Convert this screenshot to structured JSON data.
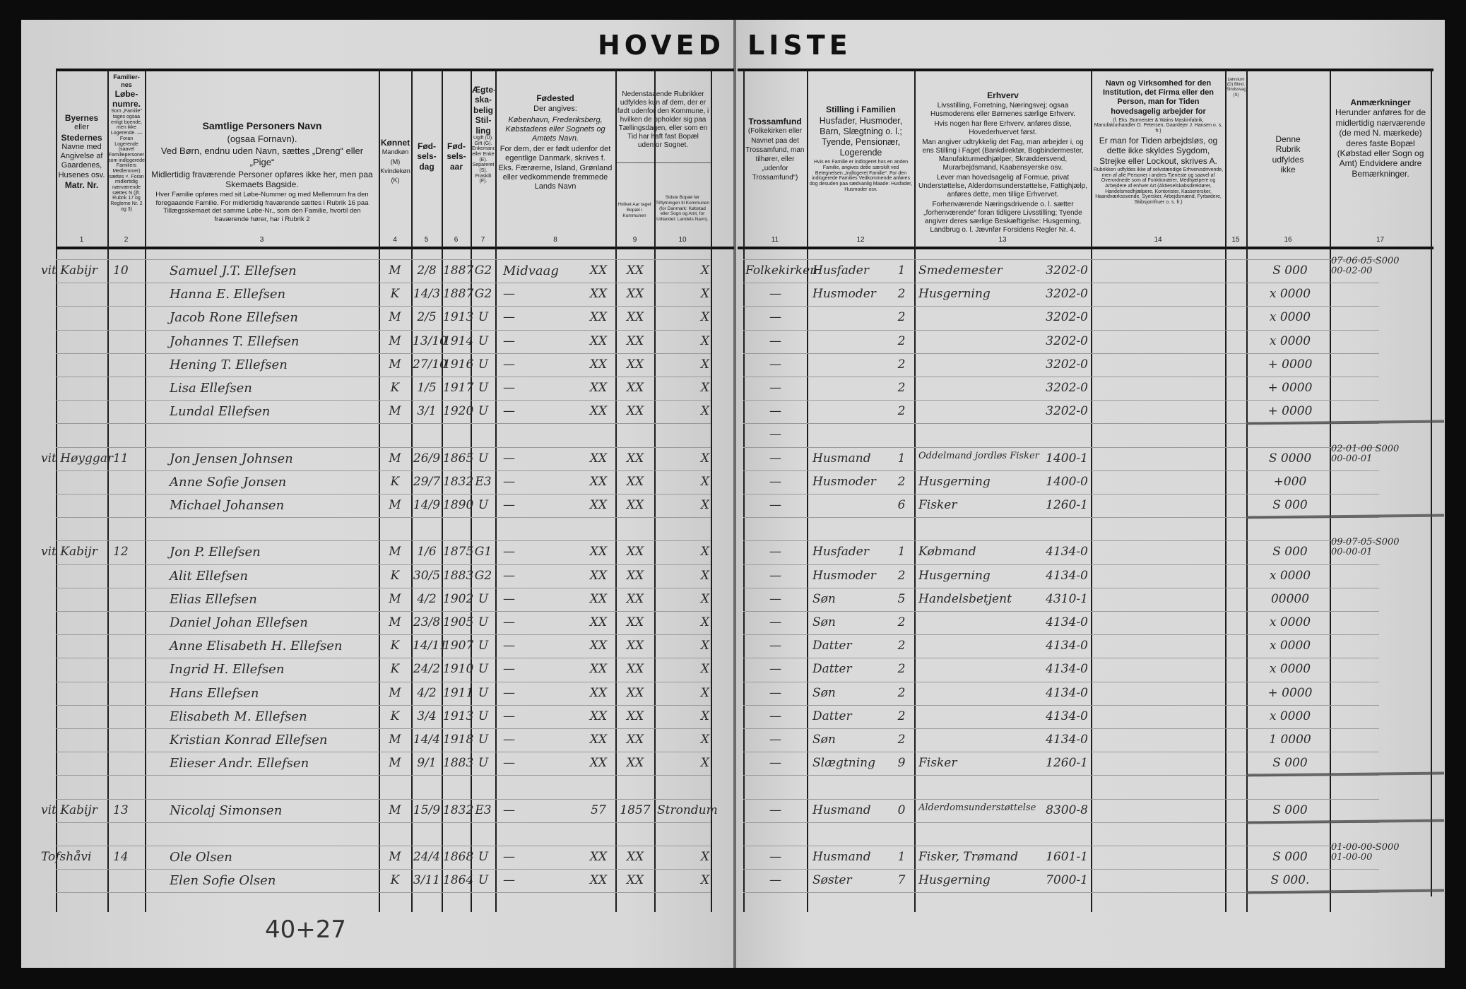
{
  "title": {
    "left": "HOVED",
    "right": "LISTE"
  },
  "headers": {
    "c1": {
      "b1": "Byernes",
      "t1": "eller",
      "b2": "Stedernes",
      "t2": "Navne med Angivelse af Gaardenes, Husenes osv.",
      "b3": "Matr. Nr."
    },
    "c2": {
      "b1": "Familier-nes",
      "b2": "Løbe-numre.",
      "t": "Som „Familie“ tages ogsaa enligt boende, men ikke Logerende. — Foran Logerende (saavel Familiepersoner som indlogerede Familiers Medlemmer) sættes ×. Foran midlertidig nærværende sættes N (jfr. Rubrik 17 og Reglerne Nr. 2 og 3)"
    },
    "c3": {
      "title": "Samtlige Personers Navn",
      "sub": "(ogsaa Fornavn).",
      "p1": "Ved Børn, endnu uden Navn, sættes „Dreng“ eller „Pige“",
      "p2": "Midlertidig fraværende Personer opføres ikke her, men paa Skemaets Bagside.",
      "p3": "Hver Familie opføres med sit Løbe-Nummer og med Mellemrum fra den foregaaende Familie. For midlertidig fraværende sættes i Rubrik 16 paa Tillægsskemaet det samme Løbe-Nr., som den Familie, hvortil den fraværende hører, har i Rubrik 2"
    },
    "c4": {
      "title": "Kønnet",
      "t": "Mandkøn (M) Kvindekøn (K)"
    },
    "c5": "Fød-sels-dag",
    "c6": "Fød-sels-aar",
    "c7": {
      "title": "Ægte-ska-belig Stil-ling",
      "t": "Ugift (U). Gift (G). Enkemand eller Enke (E). Separeret (S). Fraskilt (F)."
    },
    "c8": {
      "title": "Fødested",
      "t1": "Der angives:",
      "t2": "København, Frederiksberg, Købstadens eller Sognets og Amtets Navn.",
      "t3": "For dem, der er født udenfor det egentlige Danmark, skrives f. Eks. Færøerne, Island, Grønland eller vedkommende fremmede Lands Navn"
    },
    "c9_10": "Nedenstaaende Rubrikker udfyldes kun af dem, der er født udenfor den Kommune, i hvilken de opholder sig paa Tællingsdagen, eller som en Tid har haft fast Bopæl udenfor Sognet.",
    "c9": "Hvilket Aar taget Bopæl i Kommunen",
    "c10": "Sidste Bopæl før Tilflytningen til Kommunen (for Danmark: Købstad eller Sogn og Amt, for Udlandet: Landets Navn).",
    "c11": {
      "title": "Trossamfund",
      "t": "(Folkekirken eller Navnet paa det Trossamfund, man tilhører, eller „udenfor Trossamfund“)"
    },
    "c12": {
      "title": "Stilling i Familien",
      "t1": "Husfader, Husmoder, Barn, Slægtning o. l.; Tyende, Pensionær, Logerende",
      "t2": "Hvis en Familie er indlogeret hos en anden Familie, angives dette særskilt ved Betegnelsen „Indlogeret Familie“. For den indlogerede Families Vedkommende anføres dog desuden paa sædvanlig Maade: Husfader, Husmoder osv."
    },
    "c13": {
      "title": "Erhverv",
      "p1": "Livsstilling, Forretning, Næringsvej; ogsaa Husmoderens eller Børnenes særlige Erhverv.",
      "p2": "Hvis nogen har flere Erhverv, anføres disse, Hovederhvervet først.",
      "p3": "Man angiver udtrykkelig det Fag, man arbejder i, og ens Stilling i Faget (Bankdirektør, Bogbindermester, Manufakturmedhjælper, Skræddersvend, Murarbejdsmand, Kaabensyerske osv.",
      "p4": "Lever man hovedsagelig af Formue, privat Understøttelse, Alderdomsunderstøttelse, Fattighjælp, anføres dette, men tillige Erhvervet.",
      "p5": "Forhenværende Næringsdrivende o. l. sætter „forhenværende“ foran tidligere Livsstilling; Tyende angiver deres særlige Beskæftigelse: Husgerning, Landbrug o. l. Jævnfør Forsidens Regler Nr. 4."
    },
    "c14": {
      "p1": "Navn og Virksomhed for den Institution, det Firma eller den Person, man for Tiden hovedsagelig arbejder for",
      "p2": "(f. Eks. Burmeister & Wains Maskinfabrik, Manufakturhandler O. Petersen, Gaardejer J. Hansen o. s. fr.)",
      "p3": "Er man for Tiden arbejdsløs, og dette ikke skyldes Sygdom, Strejke eller Lockout, skrives A.",
      "p4": "Rubrikken udfyldes ikke af selvstændige Erhvervsdrivende, men af alle Personer i andres Tjeneste og saavel af Overordnede som af Funktionærer, Medhjælpere og Arbejdere af enhver Art (Aktieselskabsdirektører, Handelsmedhjælpere, Kontorister, Kasserersker, Haandværkssvende, Syersker, Arbejdsmænd, Fyrbødere, Skibsjomfruer o. s. fr.)"
    },
    "c15": "Døvstum (D) Blind. Sindssvag (S)",
    "c16": "Denne Rubrik udfyldes ikke",
    "c17": {
      "title": "Anmærkninger",
      "t": "Herunder anføres for de midlertidig nærværende (de med N. mærkede) deres faste Bopæl (Købstad eller Sogn og Amt) Endvidere andre Bemærkninger."
    }
  },
  "column_numbers": [
    "1",
    "2",
    "3",
    "4",
    "5",
    "6",
    "7",
    "8",
    "9",
    "10",
    "11",
    "12",
    "13",
    "14",
    "15",
    "16",
    "17"
  ],
  "rows": [
    {
      "place": "vit Kabijr",
      "fam": "10",
      "name": "Samuel J.T. Ellefsen",
      "sex": "M",
      "day": "2/8",
      "year": "1887",
      "marital": "G2",
      "birthplace": "Midvaag",
      "m8": "XX",
      "c9": "XX",
      "c10": "X",
      "religion": "Folkekirken",
      "position": "Husfader",
      "pos_code": "1",
      "occupation": "Smedemester",
      "occ_code": "3202-0",
      "c16": "S 000",
      "c17": "07-06-05-S000\n00-02-00"
    },
    {
      "name": "Hanna E. Ellefsen",
      "sex": "K",
      "day": "14/3",
      "year": "1887",
      "marital": "G2",
      "birthplace": "—",
      "m8": "XX",
      "c9": "XX",
      "c10": "X",
      "religion": "—",
      "position": "Husmoder",
      "pos_code": "2",
      "occupation": "Husgerning",
      "occ_code": "3202-0",
      "c16": "x 0000"
    },
    {
      "name": "Jacob Rone Ellefsen",
      "sex": "M",
      "day": "2/5",
      "year": "1913",
      "marital": "U",
      "birthplace": "—",
      "m8": "XX",
      "c9": "XX",
      "c10": "X",
      "religion": "—",
      "pos_code": "2",
      "occ_code": "3202-0",
      "c16": "x 0000"
    },
    {
      "name": "Johannes T. Ellefsen",
      "sex": "M",
      "day": "13/10",
      "year": "1914",
      "marital": "U",
      "birthplace": "—",
      "m8": "XX",
      "c9": "XX",
      "c10": "X",
      "religion": "—",
      "pos_code": "2",
      "occ_code": "3202-0",
      "c16": "x 0000"
    },
    {
      "name": "Hening T. Ellefsen",
      "sex": "M",
      "day": "27/10",
      "year": "1916",
      "marital": "U",
      "birthplace": "—",
      "m8": "XX",
      "c9": "XX",
      "c10": "X",
      "religion": "—",
      "pos_code": "2",
      "occ_code": "3202-0",
      "c16": "+ 0000"
    },
    {
      "name": "Lisa Ellefsen",
      "sex": "K",
      "day": "1/5",
      "year": "1917",
      "marital": "U",
      "birthplace": "—",
      "m8": "XX",
      "c9": "XX",
      "c10": "X",
      "religion": "—",
      "pos_code": "2",
      "occ_code": "3202-0",
      "c16": "+ 0000"
    },
    {
      "name": "Lundal Ellefsen",
      "sex": "M",
      "day": "3/1",
      "year": "1920",
      "marital": "U",
      "birthplace": "—",
      "m8": "XX",
      "c9": "XX",
      "c10": "X",
      "religion": "—",
      "pos_code": "2",
      "occ_code": "3202-0",
      "c16": "+ 0000"
    },
    {
      "religion": "—"
    },
    {
      "place": "vit Høyggar",
      "fam": "11",
      "name": "Jon Jensen Johnsen",
      "sex": "M",
      "day": "26/9",
      "year": "1865",
      "marital": "U",
      "birthplace": "—",
      "m8": "XX",
      "c9": "XX",
      "c10": "X",
      "religion": "—",
      "position": "Husmand",
      "pos_code": "1",
      "occupation": "Oddelmand jordløs Fisker",
      "occ_code": "1400-1",
      "c16": "S 0000",
      "c17": "02-01-00 S000\n00-00-01"
    },
    {
      "name": "Anne Sofie Jonsen",
      "sex": "K",
      "day": "29/7",
      "year": "1832",
      "marital": "E3",
      "birthplace": "—",
      "m8": "XX",
      "c9": "XX",
      "c10": "X",
      "religion": "—",
      "position": "Husmoder",
      "pos_code": "2",
      "occupation": "Husgerning",
      "occ_code": "1400-0",
      "c16": "+000"
    },
    {
      "name": "Michael Johansen",
      "sex": "M",
      "day": "14/9",
      "year": "1890",
      "marital": "U",
      "birthplace": "—",
      "m8": "XX",
      "c9": "XX",
      "c10": "X",
      "religion": "—",
      "pos_code": "6",
      "occupation": "Fisker",
      "occ_code": "1260-1",
      "c16": "S 000"
    },
    {},
    {
      "place": "vit Kabijr",
      "fam": "12",
      "name": "Jon P. Ellefsen",
      "sex": "M",
      "day": "1/6",
      "year": "1875",
      "marital": "G1",
      "birthplace": "—",
      "m8": "XX",
      "c9": "XX",
      "c10": "X",
      "religion": "—",
      "position": "Husfader",
      "pos_code": "1",
      "occupation": "Købmand",
      "occ_code": "4134-0",
      "c16": "S 000",
      "c17": "09-07-05-S000\n00-00-01"
    },
    {
      "name": "Alit Ellefsen",
      "sex": "K",
      "day": "30/5",
      "year": "1883",
      "marital": "G2",
      "birthplace": "—",
      "m8": "XX",
      "c9": "XX",
      "c10": "X",
      "religion": "—",
      "position": "Husmoder",
      "pos_code": "2",
      "occupation": "Husgerning",
      "occ_code": "4134-0",
      "c16": "x 0000"
    },
    {
      "name": "Elias Ellefsen",
      "sex": "M",
      "day": "4/2",
      "year": "1902",
      "marital": "U",
      "birthplace": "—",
      "m8": "XX",
      "c9": "XX",
      "c10": "X",
      "religion": "—",
      "position": "Søn",
      "pos_code": "5",
      "occupation": "Handelsbetjent",
      "occ_code": "4310-1",
      "c16": "00000"
    },
    {
      "name": "Daniel Johan Ellefsen",
      "sex": "M",
      "day": "23/8",
      "year": "1905",
      "marital": "U",
      "birthplace": "—",
      "m8": "XX",
      "c9": "XX",
      "c10": "X",
      "religion": "—",
      "position": "Søn",
      "pos_code": "2",
      "occ_code": "4134-0",
      "c16": "x 0000"
    },
    {
      "name": "Anne Elisabeth H. Ellefsen",
      "sex": "K",
      "day": "14/11",
      "year": "1907",
      "marital": "U",
      "birthplace": "—",
      "m8": "XX",
      "c9": "XX",
      "c10": "X",
      "religion": "—",
      "position": "Datter",
      "pos_code": "2",
      "occ_code": "4134-0",
      "c16": "x 0000"
    },
    {
      "name": "Ingrid H. Ellefsen",
      "sex": "K",
      "day": "24/2",
      "year": "1910",
      "marital": "U",
      "birthplace": "—",
      "m8": "XX",
      "c9": "XX",
      "c10": "X",
      "religion": "—",
      "position": "Datter",
      "pos_code": "2",
      "occ_code": "4134-0",
      "c16": "x 0000"
    },
    {
      "name": "Hans Ellefsen",
      "sex": "M",
      "day": "4/2",
      "year": "1911",
      "marital": "U",
      "birthplace": "—",
      "m8": "XX",
      "c9": "XX",
      "c10": "X",
      "religion": "—",
      "position": "Søn",
      "pos_code": "2",
      "occ_code": "4134-0",
      "c16": "+ 0000"
    },
    {
      "name": "Elisabeth M. Ellefsen",
      "sex": "K",
      "day": "3/4",
      "year": "1913",
      "marital": "U",
      "birthplace": "—",
      "m8": "XX",
      "c9": "XX",
      "c10": "X",
      "religion": "—",
      "position": "Datter",
      "pos_code": "2",
      "occ_code": "4134-0",
      "c16": "x 0000"
    },
    {
      "name": "Kristian Konrad Ellefsen",
      "sex": "M",
      "day": "14/4",
      "year": "1918",
      "marital": "U",
      "birthplace": "—",
      "m8": "XX",
      "c9": "XX",
      "c10": "X",
      "religion": "—",
      "position": "Søn",
      "pos_code": "2",
      "occ_code": "4134-0",
      "c16": "1 0000"
    },
    {
      "name": "Elieser Andr. Ellefsen",
      "sex": "M",
      "day": "9/1",
      "year": "1883",
      "marital": "U",
      "birthplace": "—",
      "m8": "XX",
      "c9": "XX",
      "c10": "X",
      "religion": "—",
      "position": "Slægtning",
      "pos_code": "9",
      "occupation": "Fisker",
      "occ_code": "1260-1",
      "c16": "S 000"
    },
    {},
    {
      "place": "vit Kabijr",
      "fam": "13",
      "name": "Nicolaj Simonsen",
      "sex": "M",
      "day": "15/9",
      "year": "1832",
      "marital": "E3",
      "birthplace": "—",
      "m8": "57",
      "c9": "1857",
      "c10": "Strondum",
      "religion": "—",
      "position": "Husmand",
      "pos_code": "0",
      "occupation": "Alderdomsunderstøttelse",
      "occ_code": "8300-8",
      "c16": "S 000"
    },
    {},
    {
      "place": "Tofshåvi",
      "fam": "14",
      "name": "Ole Olsen",
      "sex": "M",
      "day": "24/4",
      "year": "1868",
      "marital": "U",
      "birthplace": "—",
      "m8": "XX",
      "c9": "XX",
      "c10": "X",
      "religion": "—",
      "position": "Husmand",
      "pos_code": "1",
      "occupation": "Fisker, Trømand",
      "occ_code": "1601-1",
      "c16": "S 000",
      "c17": "01-00-00-S000\n01-00-00"
    },
    {
      "name": "Elen Sofie Olsen",
      "sex": "K",
      "day": "3/11",
      "year": "1864",
      "marital": "U",
      "birthplace": "—",
      "m8": "XX",
      "c9": "XX",
      "c10": "X",
      "religion": "—",
      "position": "Søster",
      "pos_code": "7",
      "occupation": "Husgerning",
      "occ_code": "7000-1",
      "c16": "S 000."
    }
  ],
  "footer_note": "40+27"
}
